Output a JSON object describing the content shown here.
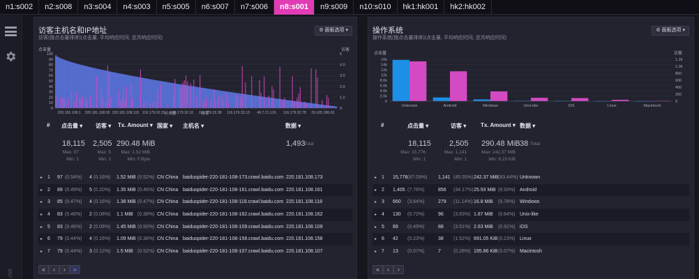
{
  "tabs": [
    {
      "label": "n1:s002"
    },
    {
      "label": "n2:s008"
    },
    {
      "label": "n3:s004"
    },
    {
      "label": "n4:s003"
    },
    {
      "label": "n5:s005"
    },
    {
      "label": "n6:s007"
    },
    {
      "label": "n7:s006"
    },
    {
      "label": "n8:s001"
    },
    {
      "label": "n9:s009"
    },
    {
      "label": "n10:s010"
    },
    {
      "label": "hk1:hk001"
    },
    {
      "label": "hk2:hk002"
    }
  ],
  "active_tab": "n8:s001",
  "colors": {
    "accent": "#e23bb5",
    "blue": "#1e8fe6",
    "magenta": "#d44ac2",
    "bg": "#16161f",
    "panel": "#23232f"
  },
  "sidebar": {
    "menu_icon": "hamburger-icon",
    "settings_icon": "gear-icon",
    "footer": "ctet"
  },
  "panels": {
    "hosts": {
      "title": "访客主机名和IP地址",
      "subtitle": "访客(按点击量排序)(点击量, 平均响应时间, 总共响应时间)",
      "options_label": "⚙ 面板选项 ▾",
      "headers": {
        "num": "#",
        "hits": "点击量 ▾",
        "visitors": "访客 ▾",
        "tx": "Tx. Amount ▾",
        "country": "国家 ▾",
        "host": "主机名 ▾",
        "data": "数据 ▾"
      },
      "summary": {
        "hits": "18,115",
        "hits_max": "Max: 97",
        "hits_min": "Min: 1",
        "visitors": "2,505",
        "visitors_max": "Max: 5",
        "visitors_min": "Min: 1",
        "tx": "290.48 MiB",
        "tx_max": "Max: 1.52 MiB",
        "tx_min": "Min: 0 Byte",
        "data": "1,493",
        "data_label": "Total"
      },
      "rows": [
        {
          "num": "1",
          "hits": "97",
          "hits_pct": "(0.54%)",
          "visitors": "4",
          "visitors_pct": "(0.16%)",
          "tx": "1.52 MiB",
          "tx_pct": "(0.52%)",
          "country": "CN China",
          "host": "baiduspider-220-181-108-173.crawl.baidu.com",
          "data": "220.181.108.173"
        },
        {
          "num": "2",
          "hits": "89",
          "hits_pct": "(0.49%)",
          "visitors": "5",
          "visitors_pct": "(0.20%)",
          "tx": "1.35 MiB",
          "tx_pct": "(0.46%)",
          "country": "CN China",
          "host": "baiduspider-220-181-108-161.crawl.baidu.com",
          "data": "220.181.108.161"
        },
        {
          "num": "3",
          "hits": "85",
          "hits_pct": "(0.47%)",
          "visitors": "4",
          "visitors_pct": "(0.16%)",
          "tx": "1.38 MiB",
          "tx_pct": "(0.47%)",
          "country": "CN China",
          "host": "baiduspider-220-181-108-118.crawl.baidu.com",
          "data": "220.181.108.118"
        },
        {
          "num": "4",
          "hits": "83",
          "hits_pct": "(0.46%)",
          "visitors": "2",
          "visitors_pct": "(0.08%)",
          "tx": "1.1 MiB",
          "tx_pct": "(0.38%)",
          "country": "CN China",
          "host": "baiduspider-220-181-108-162.crawl.baidu.com",
          "data": "220.181.108.162"
        },
        {
          "num": "5",
          "hits": "83",
          "hits_pct": "(0.46%)",
          "visitors": "2",
          "visitors_pct": "(0.08%)",
          "tx": "1.45 MiB",
          "tx_pct": "(0.50%)",
          "country": "CN China",
          "host": "baiduspider-220-181-108-109.crawl.baidu.com",
          "data": "220.181.108.109"
        },
        {
          "num": "6",
          "hits": "79",
          "hits_pct": "(0.44%)",
          "visitors": "4",
          "visitors_pct": "(0.16%)",
          "tx": "1.09 MiB",
          "tx_pct": "(0.38%)",
          "country": "CN China",
          "host": "baiduspider-220-181-108-158.crawl.baidu.com",
          "data": "220.181.108.158"
        },
        {
          "num": "7",
          "hits": "79",
          "hits_pct": "(0.44%)",
          "visitors": "3",
          "visitors_pct": "(0.12%)",
          "tx": "1.5 MiB",
          "tx_pct": "(0.52%)",
          "country": "CN China",
          "host": "baiduspider-220-181-108-107.crawl.baidu.com",
          "data": "220.181.108.107"
        }
      ],
      "pager": [
        "«",
        "‹",
        "›",
        "»"
      ]
    },
    "os": {
      "title": "操作系统",
      "subtitle": "操作系统(按点击量排序)(点击量, 平均响应时间, 总共响应时间)",
      "options_label": "⚙ 面板选项 ▾",
      "headers": {
        "num": "#",
        "hits": "点击量 ▾",
        "visitors": "访客 ▾",
        "tx": "Tx. Amount ▾",
        "data": "数据 ▾"
      },
      "summary": {
        "hits": "18,115",
        "hits_max": "Max: 15,776",
        "hits_min": "Min: 1",
        "visitors": "2,505",
        "visitors_max": "Max: 1,141",
        "visitors_min": "Min: 1",
        "tx": "290.48 MiB",
        "tx_max": "Max: 242.37 MiB",
        "tx_min": "Min: 8.23 KiB",
        "data": "38",
        "data_label": "Total"
      },
      "rows": [
        {
          "num": "1",
          "hits": "15,776",
          "hits_pct": "(87.09%)",
          "visitors": "1,141",
          "visitors_pct": "(45.55%)",
          "tx": "242.37 MiB",
          "tx_pct": "(83.44%)",
          "data": "Unknown"
        },
        {
          "num": "2",
          "hits": "1,405",
          "hits_pct": "(7.76%)",
          "visitors": "856",
          "visitors_pct": "(34.17%)",
          "tx": "25.93 MiB",
          "tx_pct": "(8.93%)",
          "data": "Android"
        },
        {
          "num": "3",
          "hits": "660",
          "hits_pct": "(3.64%)",
          "visitors": "279",
          "visitors_pct": "(11.14%)",
          "tx": "16.8 MiB",
          "tx_pct": "(5.78%)",
          "data": "Windows"
        },
        {
          "num": "4",
          "hits": "130",
          "hits_pct": "(0.72%)",
          "visitors": "96",
          "visitors_pct": "(3.83%)",
          "tx": "1.87 MiB",
          "tx_pct": "(0.64%)",
          "data": "Unix-like"
        },
        {
          "num": "5",
          "hits": "89",
          "hits_pct": "(0.49%)",
          "visitors": "88",
          "visitors_pct": "(3.51%)",
          "tx": "2.63 MiB",
          "tx_pct": "(0.91%)",
          "data": "iOS"
        },
        {
          "num": "6",
          "hits": "42",
          "hits_pct": "(0.23%)",
          "visitors": "38",
          "visitors_pct": "(1.52%)",
          "tx": "691.05 KiB",
          "tx_pct": "(0.23%)",
          "data": "Linux"
        },
        {
          "num": "7",
          "hits": "13",
          "hits_pct": "(0.07%)",
          "visitors": "7",
          "visitors_pct": "(0.28%)",
          "tx": "195.86 KiB",
          "tx_pct": "(0.07%)",
          "data": "Macintosh"
        }
      ],
      "pager": [
        "«",
        "‹",
        "›"
      ]
    }
  },
  "chart_data": [
    {
      "type": "bar",
      "title": "",
      "left_axis_label": "点击量",
      "right_axis_label": "访客",
      "xlabel": "点击量",
      "xlabel2": "访客",
      "ylim_left": [
        0,
        100
      ],
      "yticks_left": [
        "100",
        "90",
        "80",
        "70",
        "60",
        "50",
        "40",
        "30",
        "20",
        "10",
        "0"
      ],
      "ylim_right": [
        0,
        5
      ],
      "yticks_right": [
        "5",
        "4.0",
        "3.0",
        "2.0",
        "1.0",
        "0"
      ],
      "categories": [
        "220.181.108.1",
        "220.181.108.95",
        "220.181.108.115",
        "116.179.32.29",
        "116.179.32.10",
        "116.179.32.38",
        "116.179.32.13",
        "49.7.21.126",
        "116.179.32.78",
        "29.105.186.63"
      ],
      "series": [
        {
          "name": "点击量",
          "color": "#5b74e0",
          "start": 97,
          "end": 3,
          "count": 180
        },
        {
          "name": "访客",
          "color": "#d44ac2"
        }
      ]
    },
    {
      "type": "bar",
      "title": "",
      "left_axis_label": "点击量",
      "right_axis_label": "访客",
      "yticks_left": [
        "16k",
        "14k",
        "12k",
        "10k",
        "8.0k",
        "6.0k",
        "4.0k",
        "2.0k",
        "0"
      ],
      "yticks_right": [
        "1.2k",
        "1.0k",
        "800",
        "600",
        "400",
        "200",
        "0"
      ],
      "ylim_left": [
        0,
        16000
      ],
      "ylim_right": [
        0,
        1200
      ],
      "categories": [
        "Unknown",
        "Android",
        "Windows",
        "Unix-like",
        "iOS",
        "Linux",
        "Macintosh"
      ],
      "series": [
        {
          "name": "点击量",
          "color": "#1e8fe6",
          "values": [
            15776,
            1405,
            660,
            130,
            89,
            42,
            13
          ]
        },
        {
          "name": "访客",
          "color": "#d44ac2",
          "values": [
            1141,
            856,
            279,
            96,
            88,
            38,
            7
          ]
        }
      ]
    }
  ]
}
